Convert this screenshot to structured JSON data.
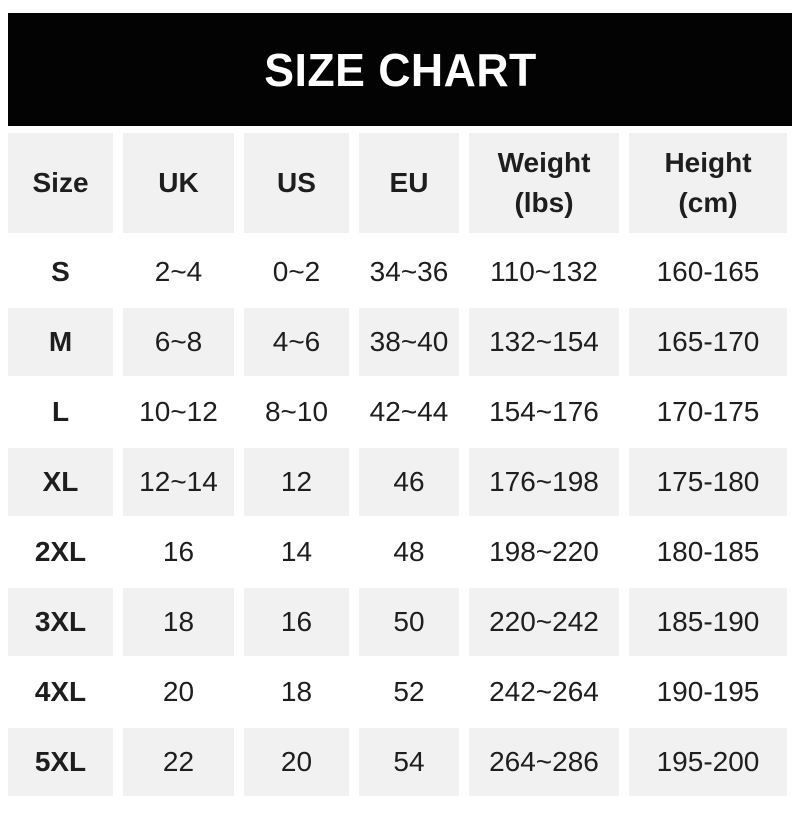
{
  "banner": {
    "title": "SIZE CHART"
  },
  "colors": {
    "banner_bg": "#030303",
    "banner_text": "#ffffff",
    "alt_row_bg": "#f1f1f1",
    "row_bg": "#ffffff",
    "text": "#1e1e1e"
  },
  "chart_data": {
    "type": "table",
    "title": "SIZE CHART",
    "columns": [
      "Size",
      "UK",
      "US",
      "EU",
      "Weight\n(lbs)",
      "Height\n(cm)"
    ],
    "rows": [
      [
        "S",
        "2~4",
        "0~2",
        "34~36",
        "110~132",
        "160-165"
      ],
      [
        "M",
        "6~8",
        "4~6",
        "38~40",
        "132~154",
        "165-170"
      ],
      [
        "L",
        "10~12",
        "8~10",
        "42~44",
        "154~176",
        "170-175"
      ],
      [
        "XL",
        "12~14",
        "12",
        "46",
        "176~198",
        "175-180"
      ],
      [
        "2XL",
        "16",
        "14",
        "48",
        "198~220",
        "180-185"
      ],
      [
        "3XL",
        "18",
        "16",
        "50",
        "220~242",
        "185-190"
      ],
      [
        "4XL",
        "20",
        "18",
        "52",
        "242~264",
        "190-195"
      ],
      [
        "5XL",
        "22",
        "20",
        "54",
        "264~286",
        "195-200"
      ]
    ],
    "layout": {
      "row_striping": "alternating",
      "header_background": "#f1f1f1"
    }
  }
}
